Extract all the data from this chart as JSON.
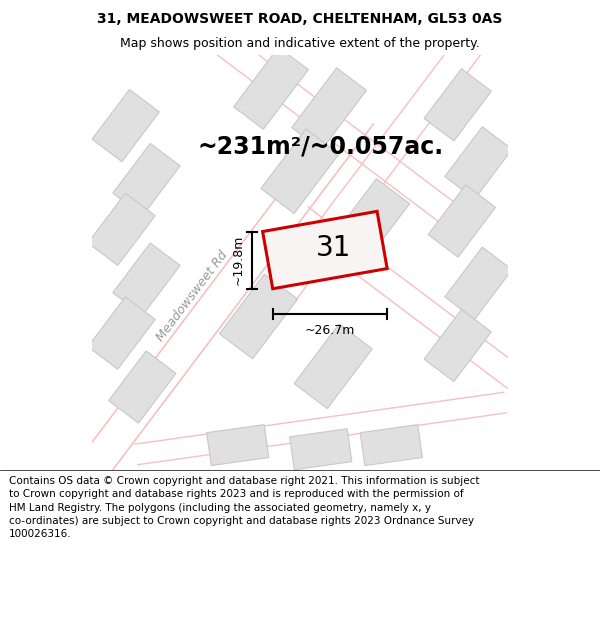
{
  "title_line1": "31, MEADOWSWEET ROAD, CHELTENHAM, GL53 0AS",
  "title_line2": "Map shows position and indicative extent of the property.",
  "footer_text": "Contains OS data © Crown copyright and database right 2021. This information is subject to Crown copyright and database rights 2023 and is reproduced with the permission of HM Land Registry. The polygons (including the associated geometry, namely x, y co-ordinates) are subject to Crown copyright and database rights 2023 Ordnance Survey 100026316.",
  "area_text": "~231m²/~0.057ac.",
  "road_label": "Meadowsweet Rd",
  "number_label": "31",
  "width_label": "~26.7m",
  "height_label": "~19.8m",
  "map_bg_color": "#f5f5f5",
  "road_color": "#f5c0c0",
  "building_fill": "#e0e0e0",
  "building_edge": "#c8c8c8",
  "highlight_fill": "#f8f4f4",
  "highlight_edge": "#cc0000",
  "title_fontsize": 10,
  "subtitle_fontsize": 9,
  "footer_fontsize": 7.5,
  "area_fontsize": 17,
  "label_fontsize": 9,
  "road_label_fontsize": 9,
  "number_fontsize": 20
}
